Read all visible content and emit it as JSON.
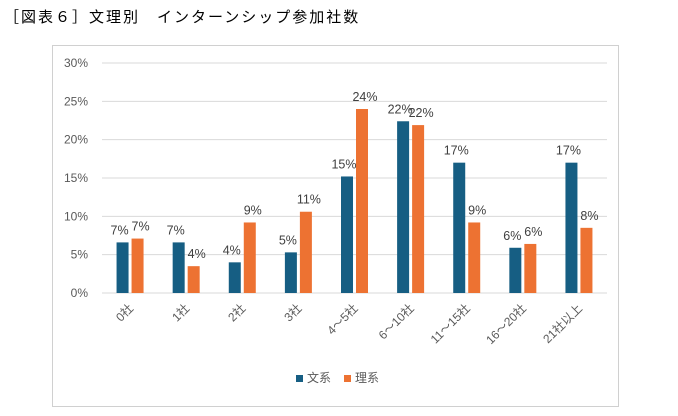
{
  "title": "［図表６］文理別　インターンシップ参加社数",
  "chart_data": {
    "type": "bar",
    "title": "",
    "categories": [
      "0社",
      "1社",
      "2社",
      "3社",
      "4～5社",
      "6～10社",
      "11～15社",
      "16～20社",
      "21社以上"
    ],
    "series": [
      {
        "name": "文系",
        "color": "#165e83",
        "values": [
          6.6,
          6.6,
          4.0,
          5.3,
          15.2,
          22.4,
          17.0,
          5.9,
          17.0
        ],
        "labels": [
          "7%",
          "7%",
          "4%",
          "5%",
          "15%",
          "22%",
          "17%",
          "6%",
          "17%"
        ]
      },
      {
        "name": "理系",
        "color": "#ed7232",
        "values": [
          7.1,
          3.5,
          9.2,
          10.6,
          24.0,
          21.9,
          9.2,
          6.4,
          8.5
        ],
        "labels": [
          "7%",
          "4%",
          "9%",
          "11%",
          "24%",
          "22%",
          "9%",
          "6%",
          "8%"
        ]
      }
    ],
    "ylim": [
      0,
      30
    ],
    "yticks": [
      "0%",
      "5%",
      "10%",
      "15%",
      "20%",
      "25%",
      "30%"
    ],
    "grid": true,
    "legend": "bottom"
  }
}
